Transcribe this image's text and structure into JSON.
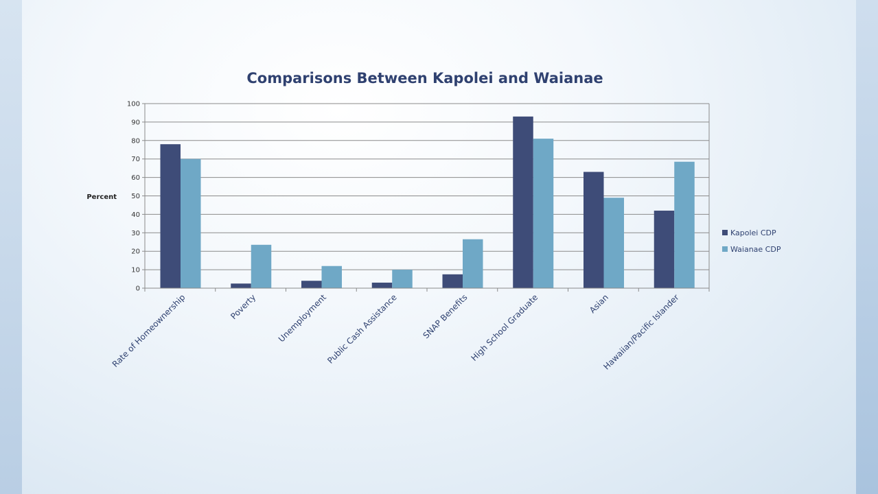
{
  "chart_data": {
    "type": "bar",
    "title": "Comparisons Between Kapolei and Waianae",
    "ylabel": "Percent",
    "xlabel": "",
    "ylim": [
      0,
      100
    ],
    "yticks": [
      0,
      10,
      20,
      30,
      40,
      50,
      60,
      70,
      80,
      90,
      100
    ],
    "grid": true,
    "legend_position": "right",
    "categories": [
      "Rate of Homeownership",
      "Poverty",
      "Unemployment",
      "Public Cash Assistance",
      "SNAP Benefits",
      "High School Graduate",
      "Asian",
      "Hawaiian/Pacific Islander"
    ],
    "series": [
      {
        "name": "Kapolei CDP",
        "color": "#3e4c78",
        "values": [
          78,
          2.5,
          4,
          3,
          7.5,
          93,
          63,
          42
        ]
      },
      {
        "name": "Waianae CDP",
        "color": "#6fa8c6",
        "values": [
          70,
          23.5,
          12,
          10,
          26.5,
          81,
          49,
          68.5
        ]
      }
    ]
  }
}
